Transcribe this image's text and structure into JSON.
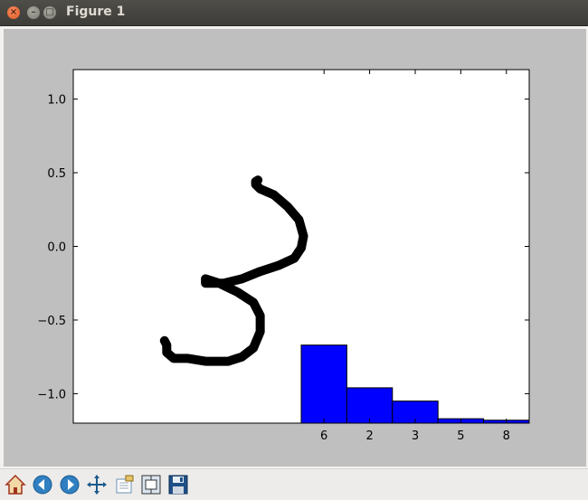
{
  "window": {
    "title": "Figure 1"
  },
  "toolbar": {
    "buttons": [
      {
        "name": "home-icon",
        "label": "Home"
      },
      {
        "name": "back-icon",
        "label": "Back"
      },
      {
        "name": "forward-icon",
        "label": "Forward"
      },
      {
        "name": "pan-icon",
        "label": "Pan"
      },
      {
        "name": "zoom-icon",
        "label": "Zoom"
      },
      {
        "name": "subplots-icon",
        "label": "Subplots"
      },
      {
        "name": "save-icon",
        "label": "Save"
      }
    ]
  },
  "colors": {
    "bar": "#0000ff",
    "line": "#000000",
    "frame_bg": "#bfbfbf"
  },
  "chart_data": {
    "type": "bar",
    "categories": [
      "6",
      "2",
      "3",
      "5",
      "8"
    ],
    "values": [
      -0.67,
      -0.96,
      -1.05,
      -1.17,
      -1.18
    ],
    "yticks": [
      "1.0",
      "0.5",
      "0.0",
      "−0.5",
      "−1.0"
    ],
    "ylim": [
      -1.2,
      1.2
    ],
    "overlay_line": {
      "type": "line",
      "x": [
        -1.5,
        -1.45,
        -1.45,
        -1.3,
        -1.0,
        -0.6,
        -0.1,
        0.2,
        0.45,
        0.6,
        0.6,
        0.45,
        0.1,
        -0.3,
        -0.5,
        -0.6,
        -0.6,
        -0.2,
        0.2,
        0.6,
        1.0,
        1.35,
        1.5,
        1.55,
        1.45,
        1.2,
        0.9,
        0.6,
        0.5,
        0.5,
        0.55
      ],
      "y": [
        -0.64,
        -0.67,
        -0.72,
        -0.76,
        -0.76,
        -0.78,
        -0.78,
        -0.75,
        -0.69,
        -0.58,
        -0.47,
        -0.38,
        -0.31,
        -0.25,
        -0.23,
        -0.22,
        -0.25,
        -0.25,
        -0.22,
        -0.17,
        -0.13,
        -0.08,
        -0.01,
        0.07,
        0.18,
        0.27,
        0.35,
        0.39,
        0.42,
        0.44,
        0.45
      ]
    }
  }
}
